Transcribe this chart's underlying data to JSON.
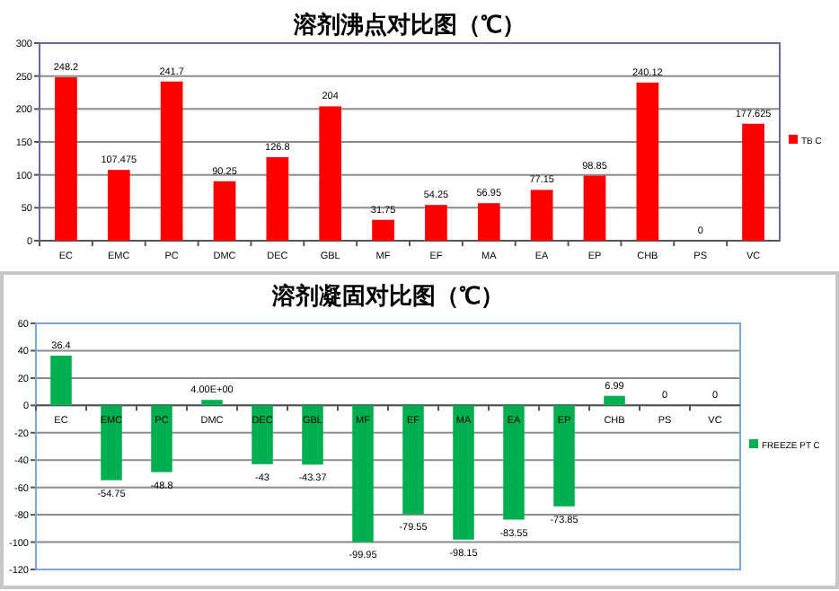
{
  "chart_data": [
    {
      "type": "bar",
      "title": "溶剂沸点对比图（℃）",
      "categories": [
        "EC",
        "EMC",
        "PC",
        "DMC",
        "DEC",
        "GBL",
        "MF",
        "EF",
        "MA",
        "EA",
        "EP",
        "CHB",
        "PS",
        "VC"
      ],
      "series": [
        {
          "name": "TB C",
          "color": "#ff0000",
          "values": [
            248.2,
            107.475,
            241.7,
            90.25,
            126.8,
            204,
            31.75,
            54.25,
            56.95,
            77.15,
            98.85,
            240.12,
            0,
            177.625
          ]
        }
      ],
      "ylim": [
        0,
        300
      ],
      "yticks": [
        0,
        50,
        100,
        150,
        200,
        250,
        300
      ],
      "grid": "y",
      "legend": "right",
      "data_labels": true
    },
    {
      "type": "bar",
      "title": "溶剂凝固对比图（℃）",
      "categories": [
        "EC",
        "EMC",
        "PC",
        "DMC",
        "DEC",
        "GBL",
        "MF",
        "EF",
        "MA",
        "EA",
        "EP",
        "CHB",
        "PS",
        "VC"
      ],
      "series": [
        {
          "name": "FREEZE PT C",
          "color": "#00b050",
          "values": [
            36.4,
            -54.75,
            -48.8,
            4,
            -43,
            -43.37,
            -99.95,
            -79.55,
            -98.15,
            -83.55,
            -73.85,
            6.99,
            0,
            0
          ],
          "value_labels": [
            "36.4",
            "-54.75",
            "-48.8",
            "4.00E+00",
            "-43",
            "-43.37",
            "-99.95",
            "-79.55",
            "-98.15",
            "-83.55",
            "-73.85",
            "6.99",
            "0",
            "0"
          ]
        }
      ],
      "ylim": [
        -120,
        60
      ],
      "yticks": [
        -120,
        -100,
        -80,
        -60,
        -40,
        -20,
        0,
        20,
        40,
        60
      ],
      "grid": "y",
      "legend": "right"
    }
  ]
}
